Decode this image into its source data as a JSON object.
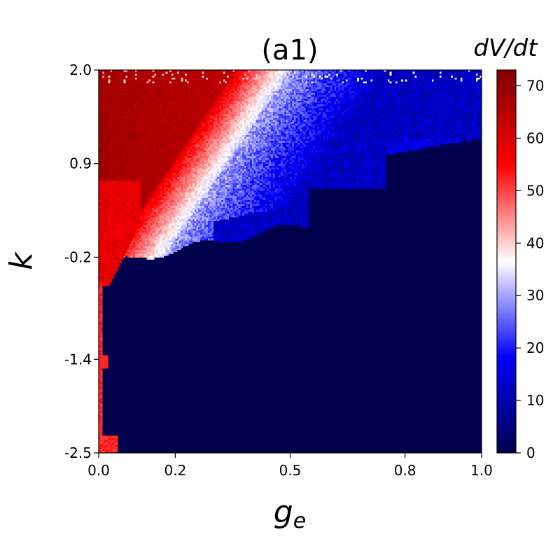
{
  "chart_data": {
    "type": "heatmap",
    "title": "(a1)",
    "xlabel": "g",
    "xlabel_sub": "e",
    "ylabel": "k",
    "colorbar_label": "dV/dt",
    "xlim": [
      0.0,
      1.0
    ],
    "ylim": [
      -2.5,
      2.0
    ],
    "x_ticks": [
      0.0,
      0.2,
      0.5,
      0.8,
      1.0
    ],
    "x_tick_labels": [
      "0.0",
      "0.2",
      "0.5",
      "0.8",
      "1.0"
    ],
    "y_ticks": [
      2.0,
      0.9,
      -0.2,
      -1.4,
      -2.5
    ],
    "y_tick_labels": [
      "2.0",
      "0.9",
      "-0.2",
      "-1.4",
      "-2.5"
    ],
    "colorbar_range": [
      0,
      73
    ],
    "colorbar_ticks": [
      0,
      10,
      20,
      30,
      40,
      50,
      60,
      70
    ],
    "colorbar_tick_labels": [
      "0",
      "10",
      "20",
      "30",
      "40",
      "50",
      "60",
      "70"
    ],
    "colormap": "seismic",
    "colormap_colors": [
      "#00004c",
      "#0000ff",
      "#ffffff",
      "#ff0000",
      "#800000"
    ],
    "background_value": 0,
    "regions": [
      {
        "name": "low-k-left-band",
        "x_range": [
          0.0,
          0.02
        ],
        "y_range": [
          -2.5,
          -0.4
        ],
        "value": 50
      },
      {
        "name": "mid-k-left-lobe",
        "x_range": [
          0.0,
          0.12
        ],
        "y_range": [
          -0.4,
          0.6
        ],
        "value": 60
      },
      {
        "name": "upper-left-red",
        "x_range": [
          0.0,
          0.25
        ],
        "y_range": [
          0.6,
          2.0
        ],
        "value": 62
      },
      {
        "name": "white-transition-band",
        "x_range": [
          0.15,
          0.55
        ],
        "y_range": [
          0.6,
          2.0
        ],
        "value": 37
      },
      {
        "name": "blue-diagonal-band",
        "x_range": [
          0.2,
          1.0
        ],
        "y_range": [
          0.0,
          2.0
        ],
        "value": 18
      }
    ]
  }
}
